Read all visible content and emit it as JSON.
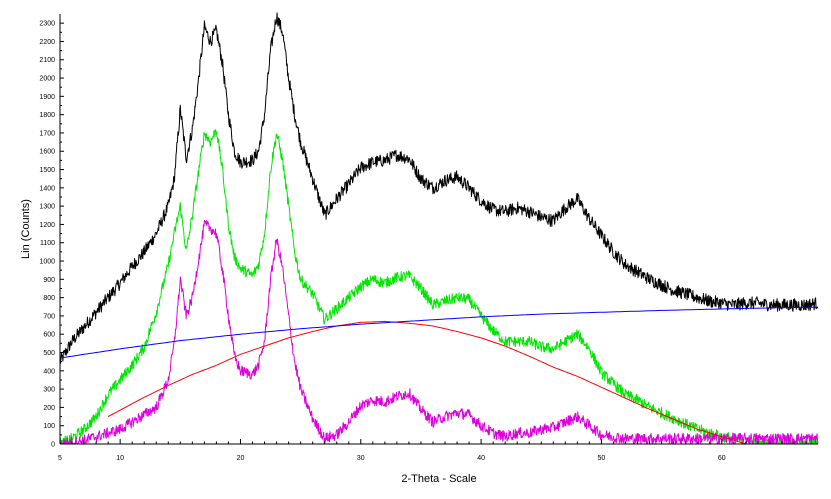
{
  "chart_data": {
    "type": "line",
    "title": "",
    "xlabel": "2-Theta - Scale",
    "ylabel": "Lin (Counts)",
    "xlim": [
      5,
      68
    ],
    "ylim": [
      0,
      2350
    ],
    "x_ticks": [
      5,
      10,
      20,
      30,
      40,
      50,
      60
    ],
    "y_ticks": [
      0,
      100,
      200,
      300,
      400,
      500,
      600,
      700,
      800,
      900,
      1000,
      1100,
      1200,
      1300,
      1400,
      1500,
      1600,
      1700,
      1800,
      1900,
      2000,
      2100,
      2200,
      2300
    ],
    "grid": false,
    "legend": "none",
    "series": [
      {
        "color": "#000000",
        "noise": 35,
        "x": [
          5,
          6,
          7,
          8,
          9,
          10,
          11,
          12,
          13,
          14,
          14.5,
          15,
          15.5,
          16,
          16.5,
          17,
          17.5,
          18,
          18.5,
          19,
          19.5,
          20,
          21,
          21.5,
          22,
          22.5,
          23,
          23.5,
          24,
          24.5,
          25,
          26,
          27,
          28,
          29,
          30,
          31,
          32,
          33,
          34,
          35,
          36,
          37,
          38,
          39,
          40,
          41,
          42,
          43,
          44,
          45,
          46,
          47,
          48,
          49,
          50,
          51,
          52,
          53,
          54,
          55,
          56,
          57,
          58,
          59,
          60,
          61,
          62,
          63,
          64,
          65,
          66,
          67,
          68
        ],
        "y": [
          450,
          560,
          640,
          720,
          800,
          880,
          970,
          1050,
          1150,
          1300,
          1450,
          1830,
          1560,
          1720,
          1980,
          2280,
          2200,
          2260,
          2080,
          1800,
          1600,
          1540,
          1550,
          1600,
          1800,
          2150,
          2340,
          2250,
          2000,
          1800,
          1650,
          1450,
          1250,
          1340,
          1420,
          1510,
          1540,
          1550,
          1580,
          1560,
          1450,
          1400,
          1440,
          1460,
          1400,
          1330,
          1280,
          1270,
          1290,
          1270,
          1240,
          1220,
          1290,
          1340,
          1230,
          1140,
          1050,
          980,
          940,
          900,
          870,
          840,
          820,
          800,
          780,
          770,
          760,
          770,
          770,
          760,
          760,
          760,
          760,
          770
        ]
      },
      {
        "color": "#00e600",
        "noise": 30,
        "x": [
          5,
          6,
          7,
          8,
          9,
          10,
          11,
          12,
          13,
          14,
          14.5,
          15,
          15.5,
          16,
          16.5,
          17,
          17.5,
          18,
          18.5,
          19,
          19.5,
          20,
          21,
          21.5,
          22,
          22.5,
          23,
          23.5,
          24,
          24.5,
          25,
          26,
          27,
          28,
          29,
          30,
          31,
          32,
          33,
          34,
          35,
          36,
          37,
          38,
          39,
          40,
          41,
          42,
          43,
          44,
          45,
          46,
          47,
          48,
          49,
          50,
          51,
          52,
          53,
          54,
          55,
          56,
          57,
          58,
          59,
          60,
          61,
          62,
          63,
          64,
          65,
          66,
          67,
          68
        ],
        "y": [
          0,
          30,
          80,
          150,
          270,
          350,
          430,
          530,
          720,
          980,
          1150,
          1300,
          1050,
          1250,
          1480,
          1700,
          1650,
          1720,
          1500,
          1200,
          1020,
          960,
          920,
          980,
          1150,
          1500,
          1700,
          1550,
          1300,
          1050,
          900,
          820,
          680,
          740,
          800,
          860,
          900,
          880,
          910,
          920,
          850,
          760,
          780,
          800,
          790,
          700,
          620,
          560,
          560,
          560,
          530,
          520,
          560,
          600,
          520,
          390,
          330,
          270,
          240,
          200,
          170,
          140,
          110,
          80,
          60,
          40,
          30,
          10,
          0,
          0,
          0,
          0,
          0,
          0
        ]
      },
      {
        "color": "#dd00dd",
        "noise": 30,
        "x": [
          5,
          6,
          7,
          8,
          9,
          10,
          11,
          12,
          13,
          14,
          14.5,
          15,
          15.5,
          16,
          16.5,
          17,
          17.5,
          18,
          18.5,
          19,
          19.5,
          20,
          21,
          21.5,
          22,
          22.5,
          23,
          23.5,
          24,
          24.5,
          25,
          26,
          27,
          28,
          29,
          30,
          31,
          32,
          33,
          34,
          35,
          36,
          37,
          38,
          39,
          40,
          41,
          42,
          43,
          44,
          45,
          46,
          47,
          48,
          49,
          50,
          51,
          52,
          53,
          54,
          55,
          56,
          57,
          58,
          59,
          60,
          61,
          62,
          63,
          64,
          65,
          66,
          67,
          68
        ],
        "y": [
          0,
          10,
          20,
          40,
          60,
          80,
          120,
          160,
          200,
          350,
          550,
          900,
          700,
          800,
          1000,
          1200,
          1180,
          1150,
          950,
          700,
          480,
          400,
          380,
          430,
          560,
          900,
          1120,
          960,
          700,
          450,
          300,
          140,
          30,
          50,
          120,
          210,
          240,
          230,
          260,
          280,
          190,
          120,
          150,
          170,
          160,
          100,
          60,
          40,
          60,
          60,
          80,
          90,
          120,
          150,
          100,
          50,
          40,
          30,
          30,
          30,
          30,
          30,
          30,
          30,
          30,
          30,
          30,
          30,
          30,
          30,
          30,
          30,
          30,
          30
        ]
      },
      {
        "color": "#ff0000",
        "noise": 0,
        "x": [
          9,
          10,
          12,
          14,
          16,
          18,
          20,
          22,
          24,
          26,
          28,
          30,
          32,
          34,
          36,
          38,
          40,
          42,
          44,
          46,
          48,
          50,
          52,
          54,
          56,
          58,
          60,
          62
        ],
        "y": [
          150,
          185,
          255,
          320,
          380,
          430,
          490,
          535,
          580,
          615,
          645,
          665,
          670,
          660,
          645,
          615,
          580,
          535,
          480,
          420,
          370,
          310,
          250,
          190,
          135,
          80,
          40,
          0
        ]
      },
      {
        "color": "#0000ff",
        "noise": 0,
        "x": [
          5,
          10,
          15,
          20,
          25,
          30,
          35,
          40,
          45,
          50,
          55,
          60,
          65,
          68
        ],
        "y": [
          470,
          520,
          565,
          600,
          630,
          655,
          675,
          695,
          710,
          720,
          730,
          738,
          745,
          748
        ]
      }
    ]
  }
}
